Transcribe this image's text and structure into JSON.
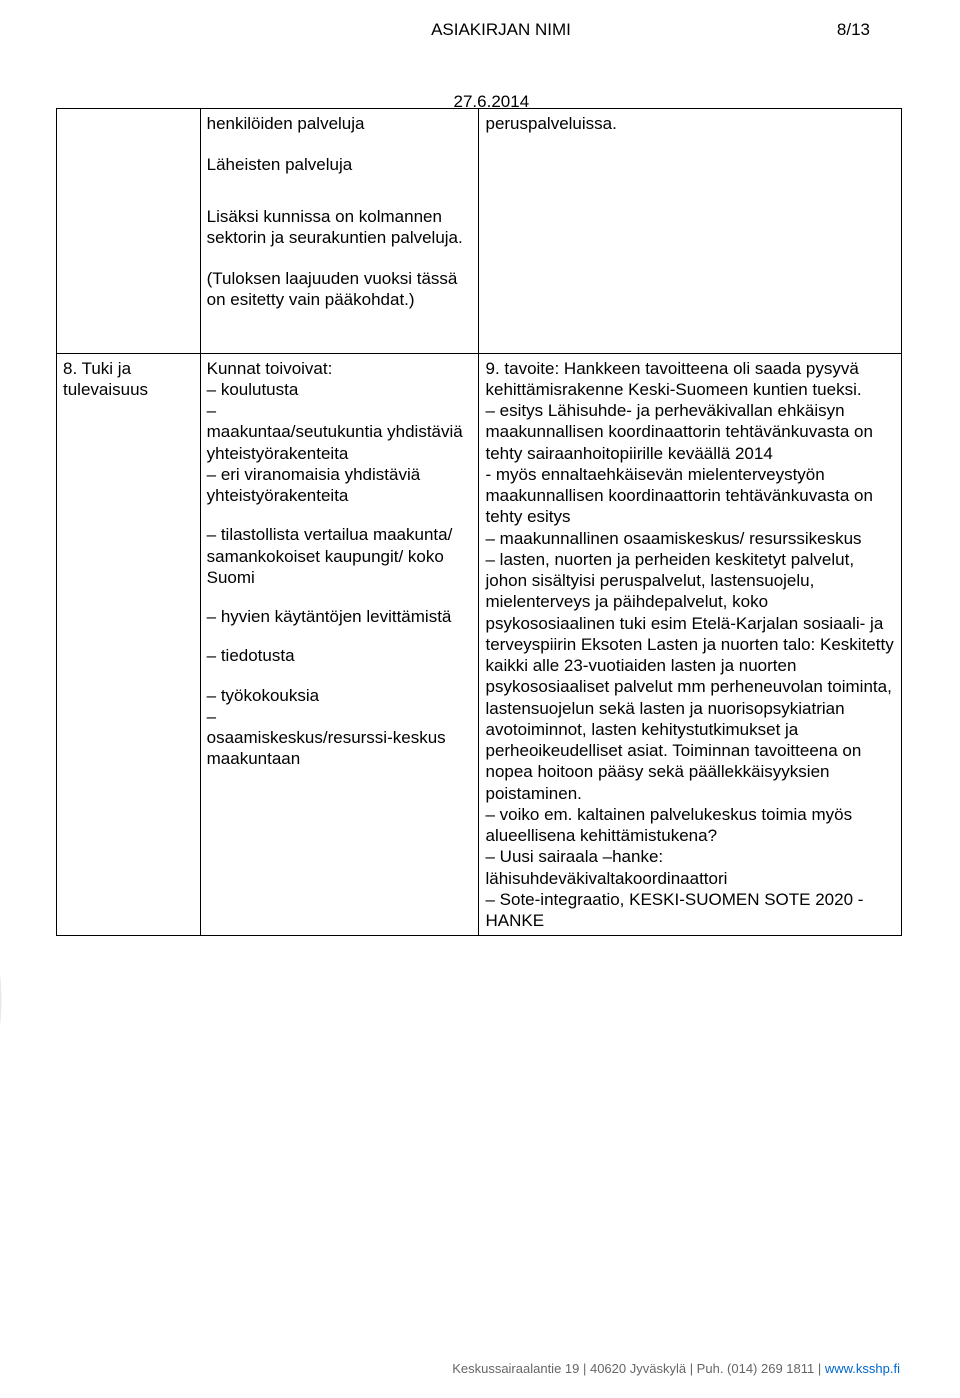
{
  "header": {
    "doc_title": "ASIAKIRJAN NIMI",
    "page_number": "8/13",
    "date": "27.6.2014"
  },
  "table": {
    "row1": {
      "col1": "",
      "col2_p1": "henkilöiden palveluja",
      "col2_p2": "Läheisten palveluja",
      "col2_p3": "Lisäksi kunnissa on kolmannen sektorin ja seurakuntien palveluja.",
      "col2_p4": "(Tuloksen laajuuden vuoksi tässä on esitetty vain pääkohdat.)",
      "col3_p1": "peruspalveluissa."
    },
    "row2": {
      "col1_p1": "8. Tuki ja tulevaisuus",
      "col2_p1": "Kunnat toivoivat:",
      "col2_p2": "– koulutusta",
      "col2_p3": "–",
      "col2_p4": "maakuntaa/seutukuntia yhdistäviä yhteistyörakenteita",
      "col2_p5": "– eri viranomaisia yhdistäviä yhteistyörakenteita",
      "col2_p6": "– tilastollista vertailua maakunta/ samankokoiset kaupungit/ koko Suomi",
      "col2_p7": "– hyvien käytäntöjen levittämistä",
      "col2_p8": "– tiedotusta",
      "col2_p9": "– työkokouksia",
      "col2_p10": "–",
      "col2_p11": "osaamiskeskus/resurssi-keskus maakuntaan",
      "col3_text": "9. tavoite: Hankkeen tavoitteena oli saada pysyvä kehittämisrakenne Keski-Suomeen kuntien tueksi.\n– esitys Lähisuhde- ja perheväkivallan ehkäisyn maakunnallisen koordinaattorin tehtävänkuvasta on tehty sairaanhoitopiirille keväällä 2014\n- myös ennaltaehkäisevän mielenterveystyön maakunnallisen koordinaattorin tehtävänkuvasta on tehty esitys\n– maakunnallinen osaamiskeskus/ resurssikeskus\n– lasten, nuorten ja perheiden keskitetyt palvelut, johon sisältyisi peruspalvelut, lastensuojelu, mielenterveys ja päihdepalvelut, koko psykososiaalinen tuki esim Etelä-Karjalan sosiaali- ja terveyspiirin Eksoten Lasten ja nuorten talo: Keskitetty kaikki alle 23-vuotiaiden lasten ja nuorten psykososiaaliset palvelut mm perheneuvolan toiminta, lastensuojelun sekä lasten ja nuorisopsykiatrian avotoiminnot, lasten kehitystutkimukset ja perheoikeudelliset asiat. Toiminnan tavoitteena on nopea hoitoon pääsy sekä päällekkäisyyksien poistaminen.\n– voiko em. kaltainen palvelukeskus toimia myös alueellisena kehittämistukena?\n– Uusi sairaala –hanke: lähisuhdeväkivaltakoordinaattori\n– Sote-integraatio, KESKI-SUOMEN SOTE 2020 -HANKE"
    }
  },
  "footer": {
    "text_part1": "Keskussairaalantie 19  |  40620 Jyväskylä  |  Puh. (014) 269 1811  |  ",
    "link_text": "www.ksshp.fi"
  },
  "colors": {
    "text": "#000000",
    "border": "#000000",
    "background": "#ffffff",
    "footer_text": "#666666",
    "link": "#0066cc",
    "arc": "#e8e8e8"
  }
}
